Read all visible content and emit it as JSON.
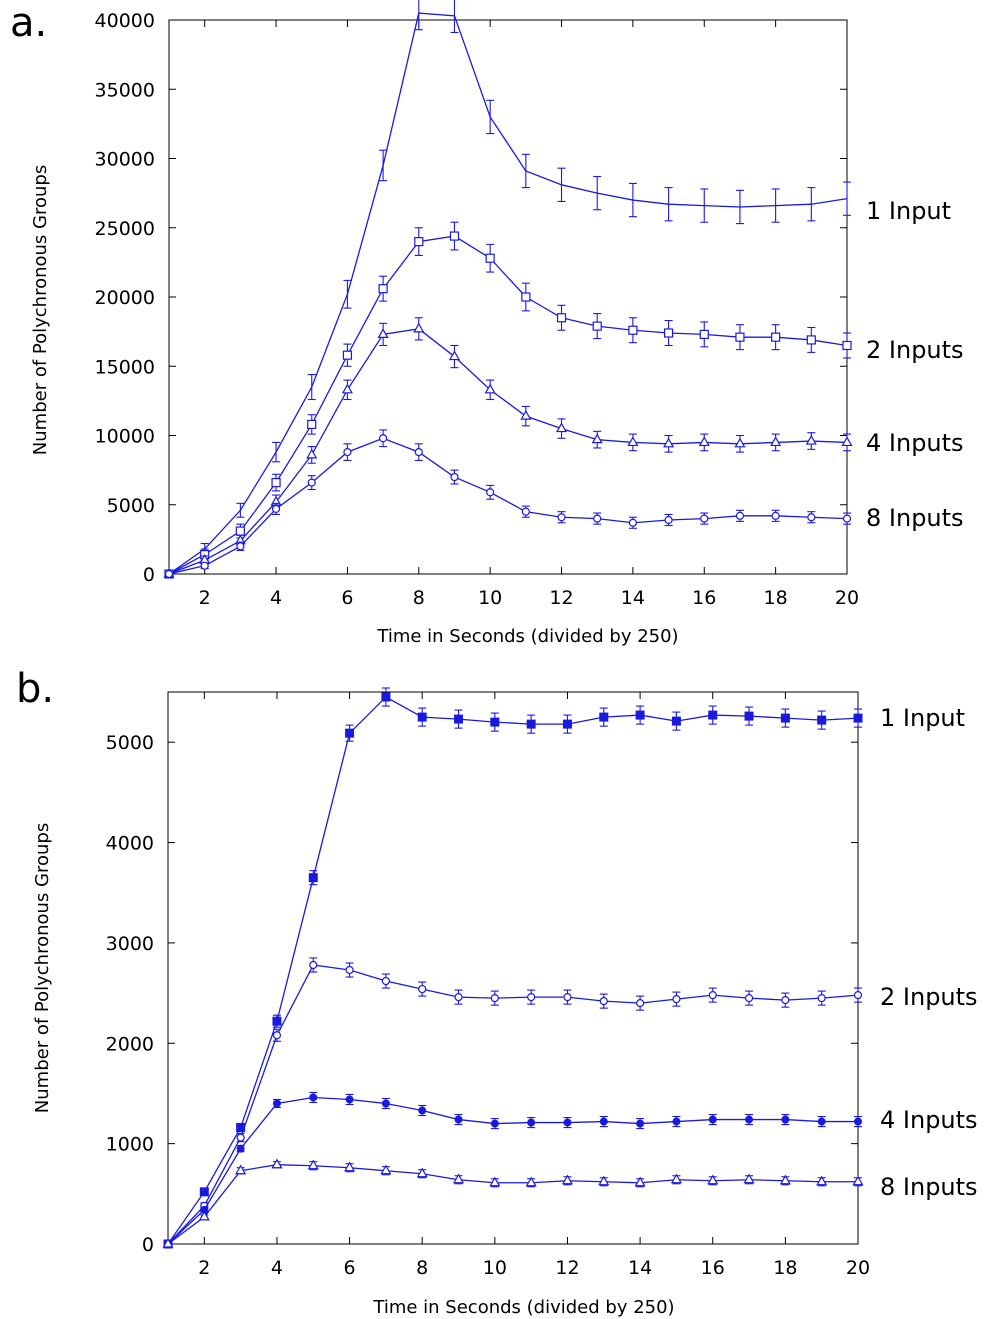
{
  "chart_data": [
    {
      "type": "line",
      "panel_label": "a.",
      "xlabel": "Time in Seconds (divided by 250)",
      "ylabel": "Number of Polychronous Groups",
      "xlim": [
        1,
        20
      ],
      "ylim": [
        0,
        40000
      ],
      "xticks": [
        2,
        4,
        6,
        8,
        10,
        12,
        14,
        16,
        18,
        20
      ],
      "yticks": [
        0,
        5000,
        10000,
        15000,
        20000,
        25000,
        30000,
        35000,
        40000
      ],
      "grid": false,
      "legend": "series labels at right end of each line",
      "color": "#1a1adf",
      "x": [
        1,
        2,
        3,
        4,
        5,
        6,
        7,
        8,
        9,
        10,
        11,
        12,
        13,
        14,
        15,
        16,
        17,
        18,
        19,
        20
      ],
      "series": [
        {
          "name": "1 Input",
          "marker": "none",
          "values": [
            0,
            1800,
            4600,
            8800,
            13500,
            20200,
            29500,
            40500,
            40300,
            33000,
            29100,
            28100,
            27500,
            27000,
            26700,
            26600,
            26500,
            26600,
            26700,
            27100
          ],
          "errors": [
            0,
            400,
            500,
            700,
            900,
            1000,
            1100,
            1200,
            1200,
            1200,
            1200,
            1200,
            1200,
            1200,
            1200,
            1200,
            1200,
            1200,
            1200,
            1200
          ]
        },
        {
          "name": "2 Inputs",
          "marker": "square",
          "values": [
            0,
            1400,
            3100,
            6600,
            10800,
            15800,
            20600,
            24000,
            24400,
            22800,
            20000,
            18500,
            17900,
            17600,
            17400,
            17300,
            17100,
            17100,
            16900,
            16500
          ],
          "errors": [
            0,
            400,
            500,
            600,
            700,
            800,
            900,
            1000,
            1000,
            1000,
            1000,
            900,
            900,
            900,
            900,
            900,
            900,
            900,
            900,
            900
          ]
        },
        {
          "name": "4 Inputs",
          "marker": "triangle",
          "values": [
            0,
            1000,
            2400,
            5200,
            8600,
            13300,
            17300,
            17700,
            15700,
            13300,
            11400,
            10500,
            9700,
            9500,
            9400,
            9500,
            9400,
            9500,
            9600,
            9500
          ],
          "errors": [
            0,
            300,
            400,
            500,
            600,
            700,
            800,
            800,
            800,
            700,
            700,
            700,
            600,
            600,
            600,
            600,
            600,
            600,
            600,
            600
          ]
        },
        {
          "name": "8 Inputs",
          "marker": "circle",
          "values": [
            0,
            600,
            2000,
            4700,
            6600,
            8800,
            9800,
            8800,
            7000,
            5900,
            4500,
            4100,
            4000,
            3700,
            3900,
            4000,
            4200,
            4200,
            4100,
            4000
          ],
          "errors": [
            0,
            200,
            300,
            400,
            500,
            600,
            600,
            600,
            500,
            500,
            400,
            400,
            400,
            400,
            400,
            400,
            400,
            400,
            400,
            400
          ]
        }
      ]
    },
    {
      "type": "line",
      "panel_label": "b.",
      "xlabel": "Time in Seconds (divided by 250)",
      "ylabel": "Number of Polychronous Groups",
      "xlim": [
        1,
        20
      ],
      "ylim": [
        0,
        5500
      ],
      "xticks": [
        2,
        4,
        6,
        8,
        10,
        12,
        14,
        16,
        18,
        20
      ],
      "yticks": [
        0,
        1000,
        2000,
        3000,
        4000,
        5000
      ],
      "grid": false,
      "legend": "series labels at right end of each line",
      "color": "#1a1adf",
      "x": [
        1,
        2,
        3,
        4,
        5,
        6,
        7,
        8,
        9,
        10,
        11,
        12,
        13,
        14,
        15,
        16,
        17,
        18,
        19,
        20
      ],
      "series": [
        {
          "name": "1 Input",
          "marker": "filled-square",
          "values": [
            0,
            520,
            1160,
            2220,
            3650,
            5090,
            5450,
            5250,
            5230,
            5200,
            5180,
            5180,
            5250,
            5270,
            5210,
            5270,
            5260,
            5240,
            5220,
            5240
          ],
          "errors": [
            0,
            30,
            40,
            60,
            70,
            80,
            90,
            90,
            90,
            90,
            90,
            90,
            90,
            90,
            90,
            90,
            90,
            90,
            90,
            90
          ]
        },
        {
          "name": "2 Inputs",
          "marker": "circle",
          "values": [
            0,
            380,
            1060,
            2080,
            2780,
            2730,
            2620,
            2540,
            2460,
            2450,
            2460,
            2460,
            2420,
            2400,
            2440,
            2480,
            2450,
            2430,
            2450,
            2480
          ],
          "errors": [
            0,
            30,
            40,
            60,
            70,
            70,
            70,
            70,
            70,
            70,
            70,
            70,
            70,
            70,
            70,
            70,
            70,
            70,
            70,
            70
          ]
        },
        {
          "name": "4 Inputs",
          "marker": "filled-circle",
          "values": [
            0,
            340,
            950,
            1400,
            1460,
            1440,
            1400,
            1330,
            1240,
            1200,
            1210,
            1210,
            1220,
            1200,
            1220,
            1240,
            1240,
            1240,
            1220,
            1220
          ],
          "errors": [
            0,
            20,
            30,
            40,
            50,
            50,
            50,
            50,
            50,
            50,
            50,
            50,
            50,
            50,
            50,
            50,
            50,
            50,
            50,
            50
          ]
        },
        {
          "name": "8 Inputs",
          "marker": "triangle",
          "values": [
            0,
            270,
            730,
            790,
            780,
            760,
            730,
            700,
            640,
            610,
            610,
            630,
            620,
            610,
            640,
            630,
            640,
            630,
            620,
            620
          ],
          "errors": [
            0,
            20,
            30,
            30,
            40,
            40,
            40,
            40,
            40,
            40,
            40,
            40,
            40,
            40,
            40,
            40,
            40,
            40,
            40,
            40
          ]
        }
      ]
    }
  ]
}
